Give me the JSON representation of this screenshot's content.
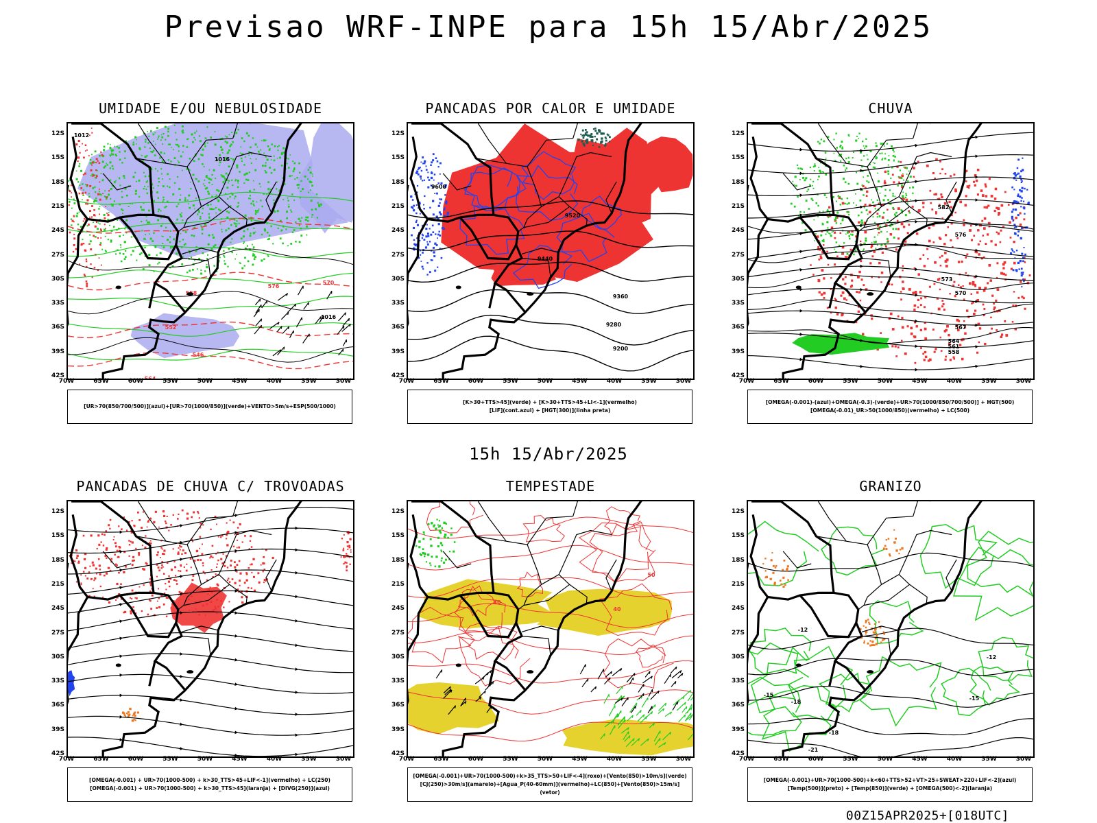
{
  "title": "Previsao WRF-INPE  para 15h 15/Abr/2025",
  "subtitle": "15h 15/Abr/2025",
  "footer": "00Z15APR2025+[018UTC]",
  "colors": {
    "green": "#22cc22",
    "blue": "#2244ee",
    "red": "#ee3333",
    "lavender": "#aaaaf0",
    "yellow": "#e6d22e",
    "dark_teal": "#1f5c50",
    "orange": "#ee7722"
  },
  "chart_data": [
    {
      "type": "map",
      "title": "UMIDADE E/OU NEBULOSIDADE",
      "legend": [
        "[UR>70(850/700/500)](azul)+[UR>70(1000/850)](verde)+VENTO>5m/s+ESP(500/1000)"
      ],
      "contour_labels": [
        "1012",
        "1016",
        "1016",
        "576",
        "570",
        "564",
        "558",
        "552",
        "546"
      ],
      "lat_ticks": [
        "12S",
        "15S",
        "18S",
        "21S",
        "24S",
        "27S",
        "30S",
        "33S",
        "36S",
        "39S",
        "42S"
      ],
      "lon_ticks": [
        "70W",
        "65W",
        "60W",
        "55W",
        "50W",
        "45W",
        "40W",
        "35W",
        "30W"
      ]
    },
    {
      "type": "map",
      "title": "PANCADAS POR CALOR E UMIDADE",
      "legend": [
        "[K>30+TTS>45](verde) + [K>30+TTS>45+LI<-1](vermelho)",
        "[LIF](cont.azul) + [HGT(300)](linha preta)"
      ],
      "contour_labels": [
        "9600",
        "9520",
        "9440",
        "9360",
        "9280",
        "9200"
      ],
      "lat_ticks": [
        "12S",
        "15S",
        "18S",
        "21S",
        "24S",
        "27S",
        "30S",
        "33S",
        "36S",
        "39S",
        "42S"
      ],
      "lon_ticks": [
        "70W",
        "65W",
        "60W",
        "55W",
        "50W",
        "45W",
        "40W",
        "35W",
        "30W"
      ]
    },
    {
      "type": "map",
      "title": "CHUVA",
      "legend": [
        "[OMEGA(-0.001)-(azul)+OMEGA(-0.3)-(verde)+UR>70(1000/850/700/500)] + HGT(500)",
        "[OMEGA(-0.01)_UR>50(1000/850)(vermelho) + LC(500)"
      ],
      "contour_labels": [
        "582",
        "576",
        "573",
        "570",
        "567",
        "564",
        "561",
        "558"
      ],
      "lat_ticks": [
        "12S",
        "15S",
        "18S",
        "21S",
        "24S",
        "27S",
        "30S",
        "33S",
        "36S",
        "39S",
        "42S"
      ],
      "lon_ticks": [
        "70W",
        "65W",
        "60W",
        "55W",
        "50W",
        "45W",
        "40W",
        "35W",
        "30W"
      ]
    },
    {
      "type": "map",
      "title": "PANCADAS DE CHUVA C/ TROVOADAS",
      "legend": [
        "[OMEGA(-0.001) + UR>70(1000-500) + k>30_TTS>45+LIF<-1](vermelho) + LC(250)",
        "[OMEGA(-0.001) + UR>70(1000-500) + k>30_TTS>45](laranja) + [DIVG(250)](azul)"
      ],
      "contour_labels": [],
      "lat_ticks": [
        "12S",
        "15S",
        "18S",
        "21S",
        "24S",
        "27S",
        "30S",
        "33S",
        "36S",
        "39S",
        "42S"
      ],
      "lon_ticks": [
        "70W",
        "65W",
        "60W",
        "55W",
        "50W",
        "45W",
        "40W",
        "35W",
        "30W"
      ]
    },
    {
      "type": "map",
      "title": "TEMPESTADE",
      "legend": [
        "[OMEGA(-0.001)+UR>70(1000-500)+k>35_TTS>50+LIF<-4](roxo)+[Vento(850)>10m/s](verde)",
        "[CJ(250)>30m/s](amarelo)+[Agua_P(40-60mm)](vermelho)+LC(850)+[Vento(850)>15m/s](vetor)"
      ],
      "contour_labels": [
        "40",
        "40",
        "50"
      ],
      "lat_ticks": [
        "12S",
        "15S",
        "18S",
        "21S",
        "24S",
        "27S",
        "30S",
        "33S",
        "36S",
        "39S",
        "42S"
      ],
      "lon_ticks": [
        "70W",
        "65W",
        "60W",
        "55W",
        "50W",
        "45W",
        "40W",
        "35W",
        "30W"
      ]
    },
    {
      "type": "map",
      "title": "GRANIZO",
      "legend": [
        "[OMEGA(-0.001)+UR>70(1000-500)+k<60+TTS>52+VT>25+SWEAT>220+LIF<-2](azul)",
        "[Temp(500)](preto) + [Temp(850)](verde) + [OMEGA(500)<-2](laranja)"
      ],
      "contour_labels": [
        "-12",
        "-12",
        "-15",
        "-18",
        "-15",
        "-18",
        "-21"
      ],
      "lat_ticks": [
        "12S",
        "15S",
        "18S",
        "21S",
        "24S",
        "27S",
        "30S",
        "33S",
        "36S",
        "39S",
        "42S"
      ],
      "lon_ticks": [
        "70W",
        "65W",
        "60W",
        "55W",
        "50W",
        "45W",
        "40W",
        "35W",
        "30W"
      ]
    }
  ]
}
